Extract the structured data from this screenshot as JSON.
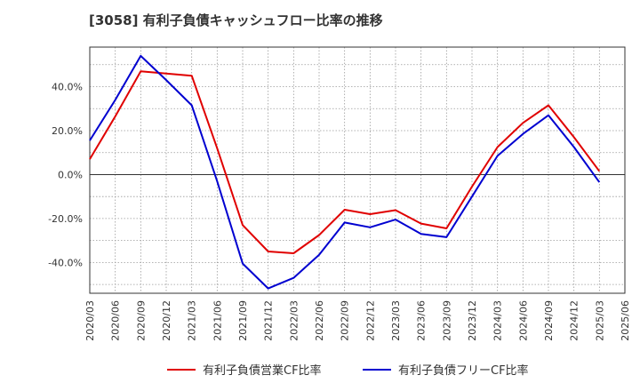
{
  "chart_data": {
    "type": "line",
    "title": "[3058]  有利子負債キャッシュフロー比率の推移",
    "xlabel": "",
    "ylabel": "",
    "ylim": [
      -54,
      58
    ],
    "y_ticks": [
      -40,
      -20,
      0,
      20,
      40
    ],
    "y_tick_labels": [
      "-40.0%",
      "-20.0%",
      "0.0%",
      "20.0%",
      "40.0%"
    ],
    "categories": [
      "2020/03",
      "2020/06",
      "2020/09",
      "2020/12",
      "2021/03",
      "2021/06",
      "2021/09",
      "2021/12",
      "2022/03",
      "2022/06",
      "2022/09",
      "2022/12",
      "2023/03",
      "2023/06",
      "2023/09",
      "2023/12",
      "2024/03",
      "2024/06",
      "2024/09",
      "2024/12",
      "2025/03",
      "2025/06"
    ],
    "grid": true,
    "legend_position": "bottom",
    "series": [
      {
        "name": "有利子負債営業CF比率",
        "color": "#e00000",
        "values": [
          7,
          26.5,
          47,
          46,
          45,
          12,
          -23,
          -35,
          -35.8,
          -27.5,
          -16,
          -18,
          -16.2,
          -22.3,
          -24.5,
          -5.5,
          12.5,
          23.5,
          31.5,
          17,
          1.5,
          null
        ]
      },
      {
        "name": "有利子負債フリーCF比率",
        "color": "#0000d0",
        "values": [
          15.5,
          34,
          54,
          43,
          31.5,
          -3,
          -40.5,
          -51.8,
          -47,
          -36.5,
          -21.8,
          -24,
          -20.5,
          -27,
          -28.5,
          -10,
          8.5,
          18.5,
          27,
          12.5,
          -3.5,
          null
        ]
      }
    ]
  }
}
